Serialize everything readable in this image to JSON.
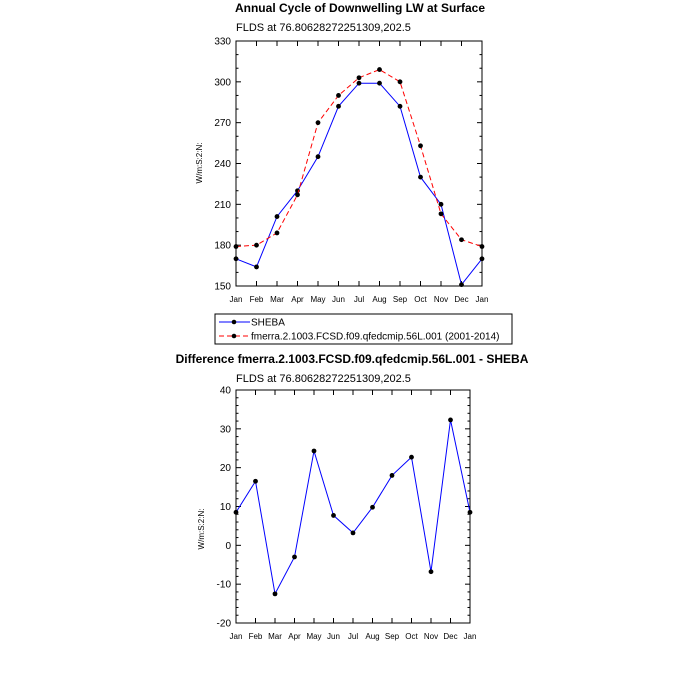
{
  "chart_data": [
    {
      "type": "line",
      "title": "Annual Cycle of Downwelling LW at Surface",
      "subtitle": "FLDS at 76.80628272251309,202.5",
      "xlabel": "",
      "ylabel": "W/m:S:2:N:",
      "categories": [
        "Jan",
        "Feb",
        "Mar",
        "Apr",
        "May",
        "Jun",
        "Jul",
        "Aug",
        "Sep",
        "Oct",
        "Nov",
        "Dec",
        "Jan"
      ],
      "ylim": [
        150,
        330
      ],
      "yticks": [
        150,
        180,
        210,
        240,
        270,
        300,
        330
      ],
      "grid": false,
      "legend_position": "bottom",
      "series": [
        {
          "name": "SHEBA",
          "color": "#0000ff",
          "dash": "solid",
          "values": [
            170,
            164,
            201,
            220,
            245,
            282,
            299,
            299,
            282,
            230,
            210,
            151,
            170
          ]
        },
        {
          "name": "fmerra.2.1003.FCSD.f09.qfedcmip.56L.001 (2001-2014)",
          "color": "#ff0000",
          "dash": "dashed",
          "values": [
            179,
            180,
            189,
            217,
            270,
            290,
            303,
            309,
            300,
            253,
            203,
            184,
            179
          ]
        }
      ]
    },
    {
      "type": "line",
      "title": "Difference fmerra.2.1003.FCSD.f09.qfedcmip.56L.001 - SHEBA",
      "subtitle": "FLDS at 76.80628272251309,202.5",
      "xlabel": "",
      "ylabel": "W/m:S:2:N:",
      "categories": [
        "Jan",
        "Feb",
        "Mar",
        "Apr",
        "May",
        "Jun",
        "Jul",
        "Aug",
        "Sep",
        "Oct",
        "Nov",
        "Dec",
        "Jan"
      ],
      "ylim": [
        -20,
        40
      ],
      "yticks": [
        -20,
        -10,
        0,
        10,
        20,
        30,
        40
      ],
      "grid": false,
      "series": [
        {
          "color": "#0000ff",
          "dash": "solid",
          "values": [
            8.5,
            16.5,
            -12.5,
            -3,
            24.3,
            7.7,
            3.2,
            9.8,
            18,
            22.7,
            -6.8,
            32.3,
            8.5
          ]
        }
      ]
    }
  ]
}
